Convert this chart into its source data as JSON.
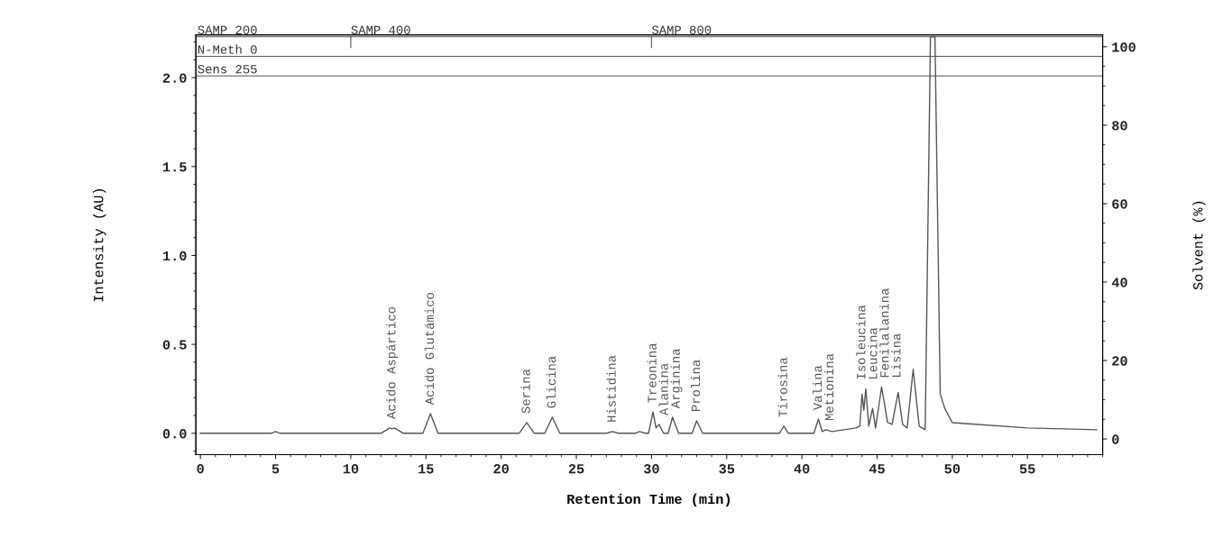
{
  "chart_data": {
    "type": "line",
    "xlabel": "Retention Time (min)",
    "ylabel": "Intensity (AU)",
    "y2label": "Solvent (%)",
    "xlim": [
      -0.3,
      60
    ],
    "xticks": [
      0,
      5,
      10,
      15,
      20,
      25,
      30,
      35,
      40,
      45,
      50,
      55
    ],
    "ylim": [
      -0.12,
      2.24
    ],
    "yticks": [
      {
        "value": 0,
        "label": "0.0"
      },
      {
        "value": 0.5,
        "label": "0.5"
      },
      {
        "value": 1,
        "label": "1.0"
      },
      {
        "value": 1.5,
        "label": "1.5"
      },
      {
        "value": 2,
        "label": "2.0"
      }
    ],
    "y2lim": [
      -4,
      103
    ],
    "y2ticks": [
      0,
      20,
      40,
      60,
      80,
      100
    ],
    "grid": false,
    "marker": "none",
    "line_style": "solid",
    "series": [
      {
        "color": "#555555",
        "x": [
          0,
          4.7,
          5.0,
          5.3,
          12.0,
          12.6,
          12.75,
          12.9,
          13.5,
          14.8,
          15.3,
          15.8,
          21.2,
          21.7,
          22.2,
          22.9,
          23.4,
          23.9,
          27.0,
          27.4,
          27.8,
          28.9,
          29.2,
          29.6,
          29.8,
          30.1,
          30.3,
          30.5,
          30.8,
          31.1,
          31.4,
          31.8,
          32.7,
          33.0,
          33.4,
          38.5,
          38.8,
          39.1,
          40.8,
          41.1,
          41.35,
          41.6,
          42.0,
          43.6,
          43.85,
          44.0,
          44.12,
          44.25,
          44.45,
          44.7,
          44.9,
          45.3,
          45.7,
          46.0,
          46.4,
          46.7,
          47.0,
          47.4,
          47.8,
          48.2,
          48.55,
          48.85,
          49.2,
          49.5,
          50.0,
          55.0,
          59.6
        ],
        "values": [
          0,
          0,
          0.01,
          0,
          0,
          0.03,
          0.025,
          0.03,
          0,
          0,
          0.11,
          0,
          0,
          0.06,
          0,
          0,
          0.09,
          0,
          0,
          0.01,
          0,
          0,
          0.01,
          0,
          0,
          0.12,
          0.03,
          0.05,
          0,
          0,
          0.09,
          0,
          0,
          0.07,
          0,
          0,
          0.04,
          0,
          0,
          0.08,
          0.01,
          0.02,
          0.01,
          0.03,
          0.04,
          0.22,
          0.13,
          0.25,
          0.04,
          0.14,
          0.03,
          0.26,
          0.06,
          0.05,
          0.23,
          0.05,
          0.03,
          0.36,
          0.04,
          0.02,
          2.23,
          2.23,
          0.22,
          0.14,
          0.06,
          0.03,
          0.02
        ]
      }
    ],
    "ref_lines": [
      {
        "axis": "y",
        "value": 2.23,
        "label": "SAMP 200",
        "color": "#555555"
      },
      {
        "axis": "y",
        "value": 2.12,
        "label": "N-Meth 0",
        "color": "#555555"
      },
      {
        "axis": "y",
        "value": 2.01,
        "label": "Sens 255",
        "color": "#555555"
      }
    ],
    "annotations": [
      {
        "text": "SAMP 400",
        "x": 10,
        "y": 2.23
      },
      {
        "text": "SAMP 800",
        "x": 30,
        "y": 2.23
      },
      {
        "text": "Acido Aspártico",
        "x": 12.75,
        "y": 0.03
      },
      {
        "text": "Acido Glutámico",
        "x": 15.3,
        "y": 0.11
      },
      {
        "text": "Serina",
        "x": 21.7,
        "y": 0.06
      },
      {
        "text": "Glicina",
        "x": 23.4,
        "y": 0.09
      },
      {
        "text": "Histidina",
        "x": 27.4,
        "y": 0.01
      },
      {
        "text": "Treonina",
        "x": 30.1,
        "y": 0.12
      },
      {
        "text": "Alanina",
        "x": 30.5,
        "y": 0.05
      },
      {
        "text": "Arginina",
        "x": 31.4,
        "y": 0.09
      },
      {
        "text": "Prolina",
        "x": 33.0,
        "y": 0.07
      },
      {
        "text": "Tirosina",
        "x": 38.8,
        "y": 0.04
      },
      {
        "text": "Valina",
        "x": 41.1,
        "y": 0.08
      },
      {
        "text": "Metionina",
        "x": 41.6,
        "y": 0.02
      },
      {
        "text": "Isoleucina",
        "x": 44.0,
        "y": 0.22
      },
      {
        "text": "Leucina",
        "x": 44.25,
        "y": 0.25
      },
      {
        "text": "Fenilalanina",
        "x": 44.7,
        "y": 0.14
      },
      {
        "text": "Lisina",
        "x": 45.3,
        "y": 0.26
      }
    ]
  }
}
